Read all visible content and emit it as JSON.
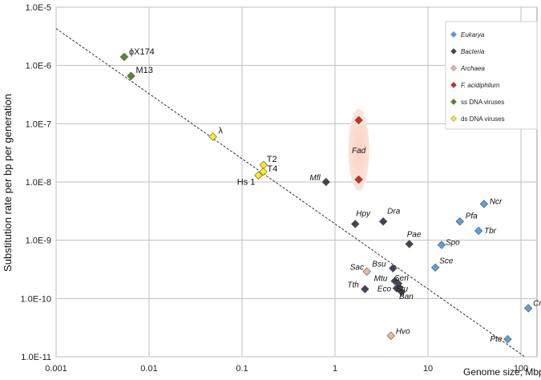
{
  "chart_data": {
    "type": "scatter",
    "title": "",
    "xlabel": "Genome size, Mbp",
    "ylabel": "Substitution rate per bp per generation",
    "xscale": "log",
    "yscale": "log",
    "xlim": [
      0.001,
      100
    ],
    "ylim": [
      1e-11,
      1e-05
    ],
    "x_ticks": [
      0.001,
      0.01,
      0.1,
      1,
      10,
      100
    ],
    "x_tick_labels": [
      "0.001",
      "0.01",
      "0.1",
      "1",
      "10",
      "100"
    ],
    "y_ticks": [
      1e-05,
      1e-06,
      1e-07,
      1e-08,
      1e-09,
      1e-10,
      1e-11
    ],
    "y_tick_labels": [
      "1.0E-5",
      "1.0E-6",
      "1.0E-7",
      "1.0E-8",
      "1.0E-9",
      "1.0E-10",
      "1.0E-11"
    ],
    "grid": true,
    "legend_position": "top-right",
    "trend_line": {
      "style": "dashed",
      "from": [
        0.001,
        4.3e-06
      ],
      "to": [
        110,
        1e-11
      ]
    },
    "highlight": {
      "label": "Fad",
      "x": 1.8,
      "y_range": [
        1.1e-08,
        1.15e-07
      ]
    },
    "series": [
      {
        "name": "Eukarya",
        "color": "#5aa0dc",
        "points": [
          {
            "label": "Ncr",
            "x": 40,
            "y": 4.2e-09
          },
          {
            "label": "Pfa",
            "x": 22,
            "y": 2.1e-09
          },
          {
            "label": "Tbr",
            "x": 35,
            "y": 1.45e-09
          },
          {
            "label": "Spo",
            "x": 14,
            "y": 8.3e-10
          },
          {
            "label": "Sce",
            "x": 12,
            "y": 3.4e-10
          },
          {
            "label": "Cre",
            "x": 120,
            "y": 6.8e-11
          },
          {
            "label": "Pte",
            "x": 72,
            "y": 2e-11
          }
        ]
      },
      {
        "name": "Bacteria",
        "color": "#3d4552",
        "points": [
          {
            "label": "Mfl",
            "x": 0.8,
            "y": 1e-08
          },
          {
            "label": "Hpy",
            "x": 1.65,
            "y": 1.9e-09
          },
          {
            "label": "Dra",
            "x": 3.3,
            "y": 2.1e-09
          },
          {
            "label": "Pae",
            "x": 6.3,
            "y": 8.6e-10
          },
          {
            "label": "Bsu",
            "x": 4.2,
            "y": 3.3e-10
          },
          {
            "label": "Mtu",
            "x": 4.4,
            "y": 2e-10
          },
          {
            "label": "Sen",
            "x": 4.8,
            "y": 1.8e-10
          },
          {
            "label": "Stu",
            "x": 4.9,
            "y": 1.55e-10
          },
          {
            "label": "Tth",
            "x": 2.1,
            "y": 1.45e-10
          },
          {
            "label": "Eco",
            "x": 4.6,
            "y": 1.5e-10
          },
          {
            "label": "Ban",
            "x": 5.2,
            "y": 1.3e-10
          }
        ]
      },
      {
        "name": "Archaea",
        "color": "#e8b8a2",
        "points": [
          {
            "label": "Sac",
            "x": 2.2,
            "y": 2.9e-10
          },
          {
            "label": "Hvo",
            "x": 4,
            "y": 2.3e-11
          }
        ]
      },
      {
        "name": "F. acidiphilum",
        "color": "#d62a1a",
        "points": [
          {
            "label": "",
            "x": 1.8,
            "y": 1.15e-07
          },
          {
            "label": "",
            "x": 1.8,
            "y": 1.1e-08
          }
        ]
      },
      {
        "name": "ss DNA viruses",
        "color": "#4e8a2e",
        "points": [
          {
            "label": "ϕX174",
            "x": 0.0054,
            "y": 1.4e-06
          },
          {
            "label": "M13",
            "x": 0.0064,
            "y": 6.6e-07
          }
        ]
      },
      {
        "name": "ds DNA viruses",
        "color": "#ffea1a",
        "points": [
          {
            "label": "λ",
            "x": 0.0485,
            "y": 6e-08
          },
          {
            "label": "T2",
            "x": 0.17,
            "y": 1.95e-08
          },
          {
            "label": "T4",
            "x": 0.169,
            "y": 1.5e-08
          },
          {
            "label": "Hs 1",
            "x": 0.15,
            "y": 1.3e-08
          }
        ]
      }
    ]
  }
}
